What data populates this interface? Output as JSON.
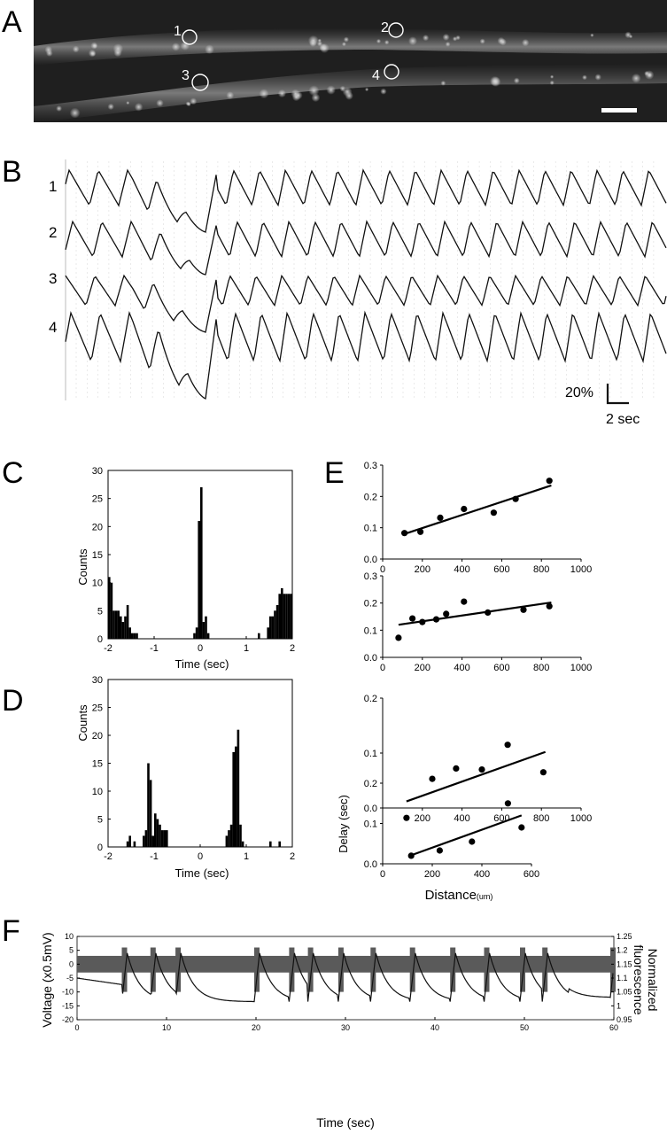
{
  "panels": {
    "A": {
      "letter": "A",
      "roi_labels": [
        "1",
        "2",
        "3",
        "4"
      ]
    },
    "B": {
      "letter": "B",
      "trace_labels": [
        "1",
        "2",
        "3",
        "4"
      ],
      "scalebar_y": "20%",
      "scalebar_x": "2 sec"
    },
    "C": {
      "letter": "C",
      "ylabel": "Counts",
      "xlabel": "Time (sec)",
      "yticks": [
        "0",
        "5",
        "10",
        "15",
        "20",
        "25",
        "30"
      ],
      "xticks": [
        "-2",
        "-1",
        "0",
        "1",
        "2"
      ]
    },
    "D": {
      "letter": "D",
      "ylabel": "Counts",
      "xlabel": "Time (sec)",
      "yticks": [
        "0",
        "5",
        "10",
        "15",
        "20",
        "25",
        "30"
      ],
      "xticks": [
        "-2",
        "-1",
        "0",
        "1",
        "2"
      ]
    },
    "E": {
      "letter": "E",
      "ylabel": "Delay (sec)",
      "xlabel": "Distance",
      "xlabel_unit": "(um)"
    },
    "F": {
      "letter": "F",
      "ylabel_left": "Voltage (x0.5mV)",
      "ylabel_right_1": "Normalized",
      "ylabel_right_2": "fluorescence",
      "xlabel": "Time (sec)"
    }
  },
  "chart_data": [
    {
      "id": "C",
      "type": "bar",
      "xlabel": "Time (sec)",
      "ylabel": "Counts",
      "xlim": [
        -2,
        2
      ],
      "ylim": [
        0,
        30
      ],
      "bin_width": 0.05,
      "bins": [
        [
          -2.0,
          11
        ],
        [
          -1.95,
          10
        ],
        [
          -1.9,
          5
        ],
        [
          -1.85,
          5
        ],
        [
          -1.8,
          5
        ],
        [
          -1.75,
          4
        ],
        [
          -1.7,
          3
        ],
        [
          -1.65,
          4
        ],
        [
          -1.6,
          6
        ],
        [
          -1.55,
          2
        ],
        [
          -1.5,
          1
        ],
        [
          -1.45,
          1
        ],
        [
          -1.4,
          1
        ],
        [
          -0.15,
          1
        ],
        [
          -0.1,
          2
        ],
        [
          -0.05,
          21
        ],
        [
          0.0,
          27
        ],
        [
          0.05,
          3
        ],
        [
          0.1,
          4
        ],
        [
          0.15,
          1
        ],
        [
          1.25,
          1
        ],
        [
          1.45,
          2
        ],
        [
          1.5,
          4
        ],
        [
          1.55,
          4
        ],
        [
          1.6,
          5
        ],
        [
          1.65,
          6
        ],
        [
          1.7,
          8
        ],
        [
          1.75,
          9
        ],
        [
          1.8,
          8
        ],
        [
          1.85,
          8
        ],
        [
          1.9,
          8
        ],
        [
          1.95,
          8
        ]
      ]
    },
    {
      "id": "D",
      "type": "bar",
      "xlabel": "Time (sec)",
      "ylabel": "Counts",
      "xlim": [
        -2,
        2
      ],
      "ylim": [
        0,
        30
      ],
      "bin_width": 0.05,
      "bins": [
        [
          -1.6,
          1
        ],
        [
          -1.55,
          2
        ],
        [
          -1.45,
          1
        ],
        [
          -1.25,
          2
        ],
        [
          -1.2,
          3
        ],
        [
          -1.15,
          15
        ],
        [
          -1.1,
          12
        ],
        [
          -1.05,
          2
        ],
        [
          -1.0,
          6
        ],
        [
          -0.95,
          5
        ],
        [
          -0.9,
          4
        ],
        [
          -0.85,
          3
        ],
        [
          -0.8,
          3
        ],
        [
          -0.75,
          3
        ],
        [
          0.55,
          2
        ],
        [
          0.6,
          3
        ],
        [
          0.65,
          4
        ],
        [
          0.7,
          17
        ],
        [
          0.75,
          18
        ],
        [
          0.8,
          21
        ],
        [
          0.85,
          4
        ],
        [
          0.9,
          1
        ],
        [
          1.5,
          1
        ],
        [
          1.7,
          1
        ]
      ]
    },
    {
      "id": "E1",
      "type": "scatter",
      "xlim": [
        0,
        1000
      ],
      "ylim": [
        0,
        0.3
      ],
      "xticks": [
        0,
        200,
        400,
        600,
        800,
        1000
      ],
      "yticks": [
        "0.0",
        "0.1",
        "0.2",
        "0.3"
      ],
      "points": [
        [
          110,
          0.083
        ],
        [
          190,
          0.087
        ],
        [
          290,
          0.132
        ],
        [
          410,
          0.16
        ],
        [
          560,
          0.148
        ],
        [
          670,
          0.192
        ],
        [
          840,
          0.25
        ]
      ],
      "fit": [
        [
          100,
          0.078
        ],
        [
          850,
          0.235
        ]
      ]
    },
    {
      "id": "E2",
      "type": "scatter",
      "xlim": [
        0,
        1000
      ],
      "ylim": [
        0,
        0.3
      ],
      "xticks": [
        0,
        200,
        400,
        600,
        800,
        1000
      ],
      "yticks": [
        "0.0",
        "0.1",
        "0.2",
        "0.3"
      ],
      "points": [
        [
          80,
          0.072
        ],
        [
          150,
          0.143
        ],
        [
          200,
          0.13
        ],
        [
          270,
          0.14
        ],
        [
          320,
          0.16
        ],
        [
          410,
          0.205
        ],
        [
          530,
          0.165
        ],
        [
          710,
          0.175
        ],
        [
          840,
          0.188
        ]
      ],
      "fit": [
        [
          80,
          0.12
        ],
        [
          850,
          0.202
        ]
      ]
    },
    {
      "id": "E3",
      "type": "scatter",
      "xlim": [
        0,
        1000
      ],
      "ylim": [
        0,
        0.2
      ],
      "xticks": [
        200,
        400,
        600,
        800,
        1000
      ],
      "yticks": [
        "0.0",
        "0.1",
        "0.2"
      ],
      "points": [
        [
          120,
          -0.018
        ],
        [
          250,
          0.053
        ],
        [
          370,
          0.072
        ],
        [
          500,
          0.07
        ],
        [
          630,
          0.115
        ],
        [
          810,
          0.065
        ]
      ],
      "fit": [
        [
          120,
          0.012
        ],
        [
          820,
          0.102
        ]
      ]
    },
    {
      "id": "E4",
      "type": "scatter",
      "xlabel": "Distance",
      "ylabel": "Delay (sec)",
      "xlim": [
        0,
        600
      ],
      "ylim": [
        0,
        0.2
      ],
      "xticks": [
        0,
        200,
        400,
        600
      ],
      "yticks": [
        "0.0",
        "0.1",
        "0.2"
      ],
      "points": [
        [
          115,
          0.02
        ],
        [
          230,
          0.033
        ],
        [
          360,
          0.055
        ],
        [
          505,
          0.15
        ],
        [
          560,
          0.09
        ]
      ],
      "fit": [
        [
          110,
          0.02
        ],
        [
          560,
          0.12
        ]
      ]
    },
    {
      "id": "F",
      "type": "line",
      "xlabel": "Time (sec)",
      "ylabel": "Voltage (x0.5mV)",
      "y2label": "Normalized fluorescence",
      "xlim": [
        0,
        60
      ],
      "ylim": [
        -20,
        10
      ],
      "y2lim": [
        0.95,
        1.25
      ],
      "xticks": [
        0,
        10,
        20,
        30,
        40,
        50,
        60
      ],
      "yticks": [
        -20,
        -15,
        -10,
        -5,
        0,
        5,
        10
      ],
      "y2ticks": [
        0.95,
        1.0,
        1.05,
        1.1,
        1.15,
        1.2,
        1.25
      ],
      "burst_times": [
        5.0,
        8.2,
        11.0,
        19.8,
        23.7,
        25.8,
        29.2,
        32.8,
        37.2,
        41.7,
        45.5,
        49.5,
        52.0,
        59.6
      ]
    }
  ]
}
